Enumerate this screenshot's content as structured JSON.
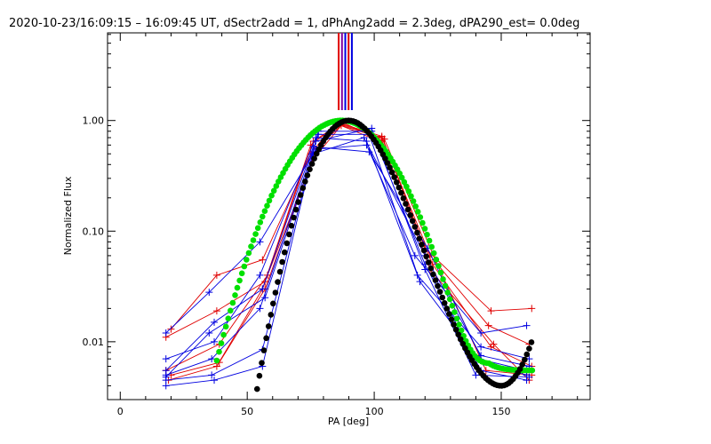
{
  "chart_data": {
    "type": "line",
    "title": "2020-10-23/16:09:15 – 16:09:45 UT, dSectr2add = 1, dPhAng2add = 2.3deg, dPA290_est=  0.0deg",
    "xlabel": "PA [deg]",
    "ylabel": "Normalized Flux",
    "xlim": [
      -5,
      185
    ],
    "ylim": [
      0.003,
      6.2
    ],
    "yscale": "log",
    "xticks": [
      {
        "v": 0,
        "label": "0"
      },
      {
        "v": 50,
        "label": "50"
      },
      {
        "v": 100,
        "label": "100"
      },
      {
        "v": 150,
        "label": "150"
      }
    ],
    "yticks": [
      {
        "v": 1.0,
        "label": "1.00"
      },
      {
        "v": 0.1,
        "label": "0.10"
      },
      {
        "v": 0.01,
        "label": "0.01"
      }
    ],
    "colors": {
      "red": "#e00000",
      "blue": "#0000e0",
      "green": "#00e000",
      "black": "#000000",
      "purple": "#8000a0"
    },
    "vertical_markers": [
      {
        "x": 86.0,
        "color": "#e00000"
      },
      {
        "x": 87.3,
        "color": "#8000a0"
      },
      {
        "x": 88.6,
        "color": "#0000e0"
      },
      {
        "x": 89.9,
        "color": "#e00000"
      },
      {
        "x": 91.2,
        "color": "#0000e0"
      }
    ],
    "series": [
      {
        "name": "red-1",
        "color": "#e00000",
        "x": [
          20,
          38,
          56,
          75,
          85,
          103,
          120,
          146,
          162
        ],
        "y": [
          0.013,
          0.04,
          0.055,
          0.5,
          0.97,
          0.72,
          0.07,
          0.019,
          0.02
        ]
      },
      {
        "name": "red-2",
        "color": "#e00000",
        "x": [
          18,
          38,
          57,
          75,
          86,
          103,
          122,
          145,
          161
        ],
        "y": [
          0.011,
          0.019,
          0.035,
          0.6,
          0.94,
          0.7,
          0.06,
          0.014,
          0.0095
        ]
      },
      {
        "name": "red-3",
        "color": "#e00000",
        "x": [
          18,
          39,
          58,
          76,
          87,
          102,
          123,
          146,
          162
        ],
        "y": [
          0.0055,
          0.0095,
          0.04,
          0.45,
          0.9,
          0.65,
          0.05,
          0.009,
          0.006
        ]
      },
      {
        "name": "red-4",
        "color": "#e00000",
        "x": [
          19,
          38,
          56,
          76,
          86,
          104,
          124,
          144,
          162
        ],
        "y": [
          0.0045,
          0.006,
          0.03,
          0.65,
          0.92,
          0.68,
          0.055,
          0.0055,
          0.005
        ]
      },
      {
        "name": "red-5",
        "color": "#e00000",
        "x": [
          20,
          39,
          57,
          77,
          88,
          103,
          122,
          147,
          161
        ],
        "y": [
          0.005,
          0.0065,
          0.03,
          0.55,
          0.95,
          0.66,
          0.045,
          0.0095,
          0.0045
        ]
      },
      {
        "name": "blue-1",
        "color": "#0000e0",
        "x": [
          18,
          35,
          55,
          77,
          97,
          116,
          142,
          160
        ],
        "y": [
          0.012,
          0.028,
          0.08,
          0.55,
          0.6,
          0.06,
          0.012,
          0.014
        ]
      },
      {
        "name": "blue-2",
        "color": "#0000e0",
        "x": [
          18,
          37,
          55,
          77,
          97,
          117,
          142,
          161
        ],
        "y": [
          0.007,
          0.01,
          0.04,
          0.7,
          0.65,
          0.04,
          0.009,
          0.007
        ]
      },
      {
        "name": "blue-3",
        "color": "#0000e0",
        "x": [
          18,
          36,
          55,
          78,
          98,
          118,
          141,
          160
        ],
        "y": [
          0.005,
          0.007,
          0.02,
          0.75,
          0.75,
          0.035,
          0.007,
          0.0055
        ]
      },
      {
        "name": "blue-4",
        "color": "#0000e0",
        "x": [
          18,
          36,
          56,
          78,
          99,
          120,
          142,
          160
        ],
        "y": [
          0.0045,
          0.005,
          0.0085,
          0.8,
          0.8,
          0.05,
          0.0055,
          0.0045
        ]
      },
      {
        "name": "blue-5",
        "color": "#0000e0",
        "x": [
          18,
          37,
          56,
          77,
          99,
          120,
          140,
          161
        ],
        "y": [
          0.004,
          0.0045,
          0.006,
          0.65,
          0.85,
          0.045,
          0.005,
          0.0048
        ]
      },
      {
        "name": "blue-6",
        "color": "#0000e0",
        "x": [
          18,
          37,
          56,
          76,
          98,
          121,
          143,
          160
        ],
        "y": [
          0.0055,
          0.015,
          0.03,
          0.58,
          0.52,
          0.07,
          0.0065,
          0.005
        ]
      },
      {
        "name": "blue-7",
        "color": "#0000e0",
        "x": [
          18,
          35,
          57,
          76,
          96,
          120,
          142,
          161
        ],
        "y": [
          0.0048,
          0.012,
          0.025,
          0.5,
          0.7,
          0.06,
          0.0075,
          0.006
        ]
      }
    ],
    "model_fits": [
      {
        "name": "green-model",
        "color": "#00e000",
        "model": "gauss",
        "a": 1.0,
        "mu": 87,
        "sigma": 15.5,
        "floor": 0.0055,
        "x_range": [
          38,
          163
        ]
      },
      {
        "name": "black-model",
        "color": "#000000",
        "model": "quad",
        "peak_x": 90,
        "peak_y": 1.0,
        "zero_x": 53,
        "min_x": 150,
        "min_y": 0.004,
        "x_range": [
          53,
          162
        ]
      }
    ]
  }
}
